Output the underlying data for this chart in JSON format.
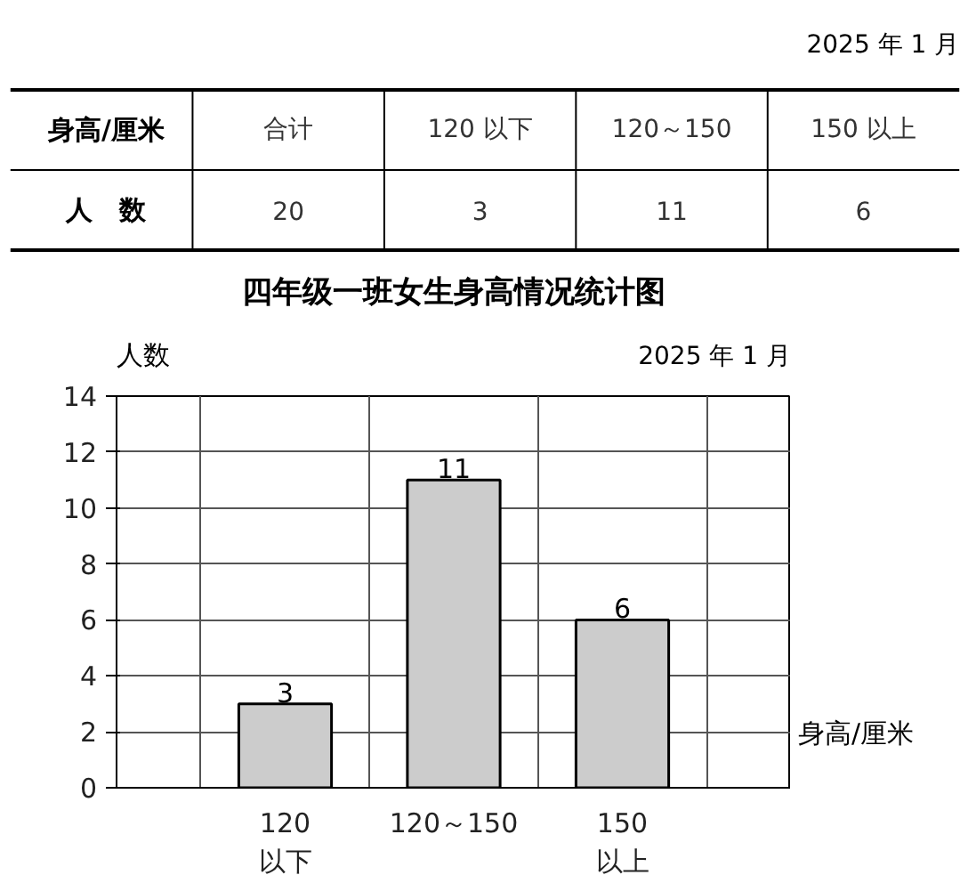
{
  "chart_data": [
    {
      "type": "other",
      "subtitle": "2025 年 1 月",
      "xlabel": "身高/厘米",
      "ylabel": "人　数",
      "categories": [
        "合计",
        "120 以下",
        "120～150",
        "150 以上"
      ],
      "values": [
        20,
        3,
        11,
        6
      ],
      "data_labels": true
    },
    {
      "type": "bar",
      "title": "四年级一班女生身高情况统计图",
      "subtitle": "2025 年 1 月",
      "xlabel": "身高/厘米",
      "ylabel": "人数",
      "categories": [
        "120\n以下",
        "120～150",
        "150\n以上"
      ],
      "values": [
        3,
        11,
        6
      ],
      "color": "#cccccc",
      "ylim": [
        0,
        14
      ],
      "yticks": [
        0,
        2,
        4,
        6,
        8,
        10,
        12,
        14
      ],
      "grid": true,
      "data_labels": true
    }
  ]
}
